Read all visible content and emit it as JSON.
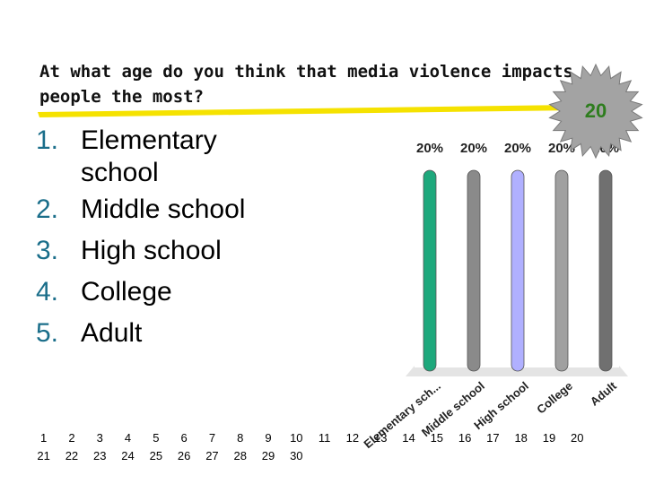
{
  "question": {
    "text": "At what age do you think that media violence impacts people the most?"
  },
  "answers": [
    {
      "number": "1.",
      "label": "Elementary school"
    },
    {
      "number": "2.",
      "label": "Middle school"
    },
    {
      "number": "3.",
      "label": "High school"
    },
    {
      "number": "4.",
      "label": "College"
    },
    {
      "number": "5.",
      "label": "Adult"
    }
  ],
  "countdown": {
    "value": "20"
  },
  "colors": {
    "accent_number": "#1a6e8a",
    "underline": "#f5e200",
    "timer_fill": "#a0a0a0",
    "timer_text": "#2e7d1e",
    "wall": "#d8d8d8"
  },
  "chart_data": {
    "type": "bar",
    "categories": [
      "Elementary sch...",
      "Middle school",
      "High school",
      "College",
      "Adult"
    ],
    "values": [
      20,
      20,
      20,
      20,
      20
    ],
    "value_labels": [
      "20%",
      "20%",
      "20%",
      "20%",
      "20%"
    ],
    "colors": [
      "#1ea87c",
      "#8a8a8a",
      "#b0b0ff",
      "#a0a0a0",
      "#707070"
    ],
    "ylim": [
      0,
      20
    ],
    "title": "",
    "xlabel": "",
    "ylabel": "",
    "grid": false
  },
  "response_grid": {
    "rows": [
      [
        "1",
        "2",
        "3",
        "4",
        "5",
        "6",
        "7",
        "8",
        "9",
        "10",
        "11",
        "12",
        "13",
        "14",
        "15",
        "16",
        "17",
        "18",
        "19",
        "20"
      ],
      [
        "21",
        "22",
        "23",
        "24",
        "25",
        "26",
        "27",
        "28",
        "29",
        "30",
        "",
        "",
        "",
        "",
        "",
        "",
        "",
        "",
        "",
        ""
      ]
    ]
  }
}
